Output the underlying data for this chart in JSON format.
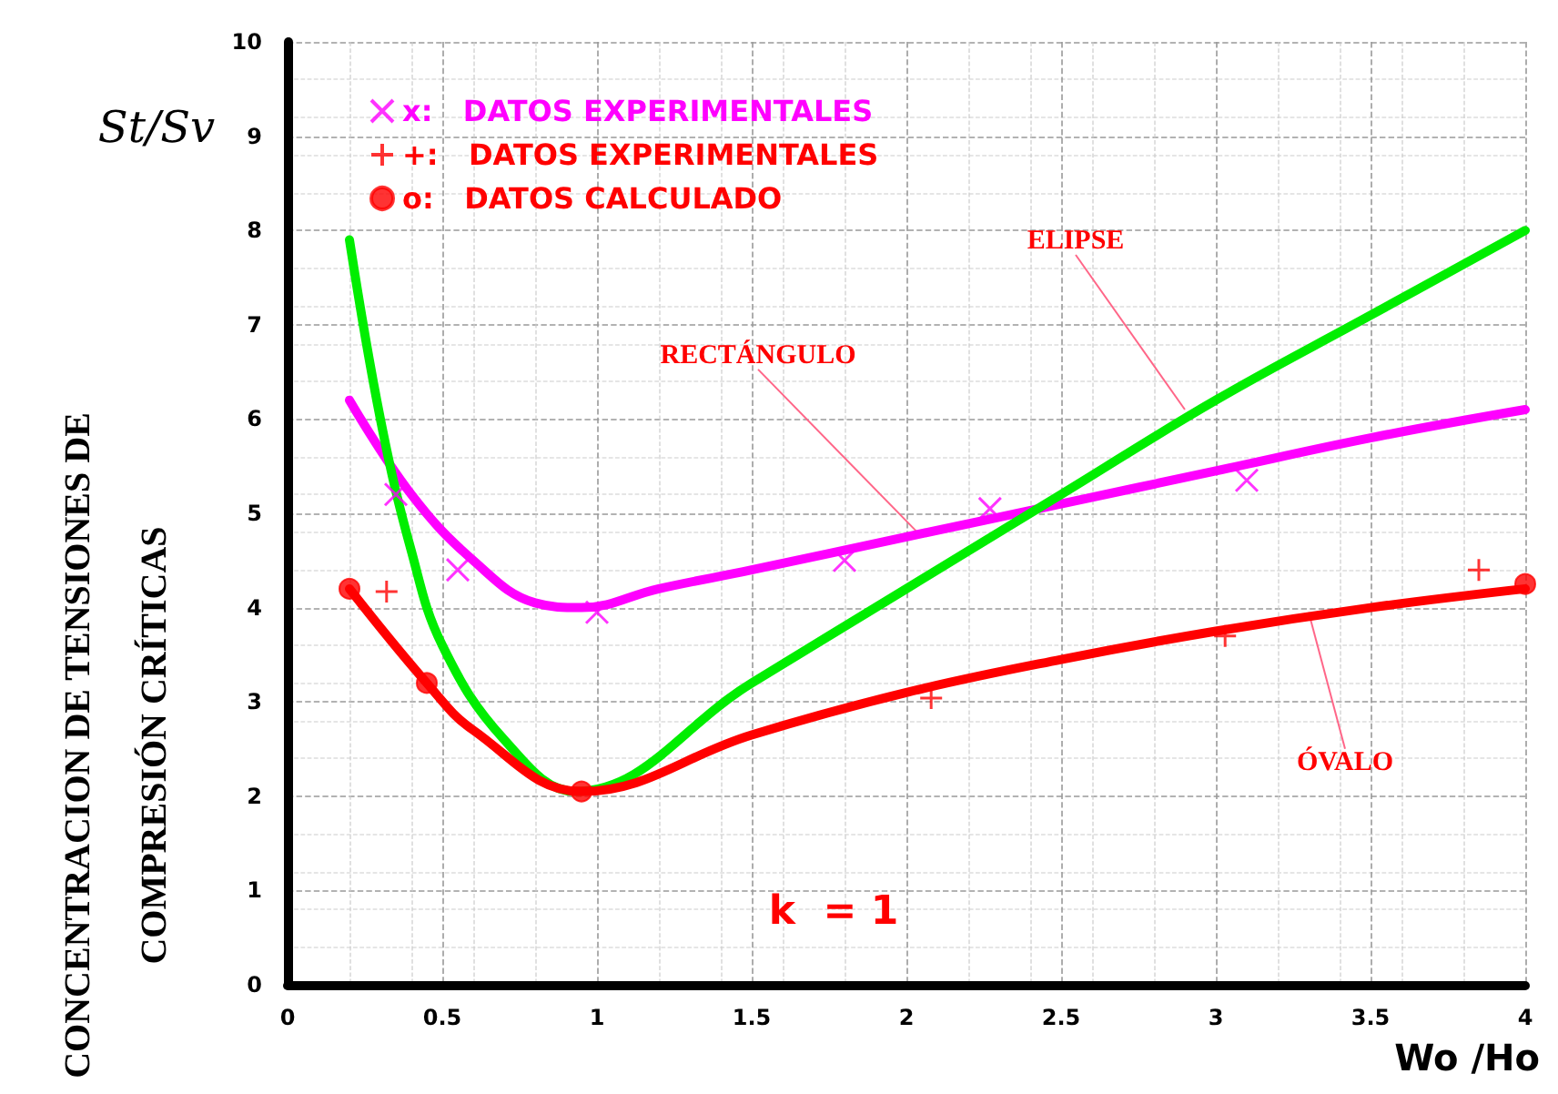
{
  "chart_data": {
    "type": "line",
    "xlabel": "Wo /Ho",
    "ylabel": "CONCENTRACION DE TENSIONES DE\nCOMPRESIÓN CRÍTICAS",
    "xlim": [
      0,
      4
    ],
    "xticks": [
      0,
      0.5,
      1,
      1.5,
      2,
      2.5,
      3,
      3.5,
      4
    ],
    "ylim": [
      0,
      10
    ],
    "yticks": [
      0,
      1,
      2,
      3,
      4,
      5,
      6,
      7,
      8,
      9,
      10
    ],
    "grid": true,
    "legend": "top left",
    "line_style": "solid",
    "series": [
      {
        "color": "#ff00ff",
        "marker": "none",
        "x": [
          0.2,
          0.4,
          0.6,
          0.8,
          0.95,
          1.2,
          1.5,
          2.0,
          2.5,
          3.0,
          3.5,
          4.0
        ],
        "values": [
          6.2,
          5.2,
          4.5,
          4.05,
          4.0,
          4.2,
          4.4,
          4.75,
          5.1,
          5.45,
          5.8,
          6.1
        ]
      },
      {
        "color": "#00ee00",
        "marker": "none",
        "x": [
          0.2,
          0.3,
          0.4,
          0.5,
          0.7,
          0.93,
          1.5,
          2.0,
          2.5,
          3.0,
          3.5,
          4.0
        ],
        "values": [
          7.9,
          6.0,
          4.6,
          3.6,
          2.6,
          2.05,
          3.2,
          4.2,
          5.2,
          6.2,
          7.1,
          8.0
        ]
      },
      {
        "color": "#ff0000",
        "marker": "none",
        "x": [
          0.2,
          0.45,
          0.6,
          0.95,
          1.5,
          2.0,
          2.5,
          3.0,
          3.5,
          4.0
        ],
        "values": [
          4.2,
          3.2,
          2.7,
          2.05,
          2.65,
          3.1,
          3.45,
          3.75,
          4.0,
          4.2
        ]
      },
      {
        "type": "scatter",
        "name": "x:   DATOS EXPERIMENTALES",
        "color": "#ff00ff",
        "marker": "cross",
        "x": [
          0.35,
          0.55,
          1.0,
          1.8,
          2.27,
          3.1
        ],
        "values": [
          5.2,
          4.4,
          3.95,
          4.5,
          5.05,
          5.35
        ]
      },
      {
        "type": "scatter",
        "name": "+:   DATOS EXPERIMENTALES",
        "color": "#ff0000",
        "marker": "plus",
        "x": [
          0.32,
          2.08,
          3.03,
          3.85
        ],
        "values": [
          4.17,
          3.04,
          3.7,
          4.4
        ]
      },
      {
        "type": "scatter",
        "name": "o:   DATOS CALCULADO",
        "color": "#ff0000",
        "marker": "circle",
        "x": [
          0.2,
          0.45,
          0.95,
          4.0
        ],
        "values": [
          4.2,
          3.2,
          2.05,
          4.25
        ]
      }
    ],
    "annotations": [
      "St/Sv",
      {
        "text": "RECTÁNGULO",
        "x": 2.05,
        "y": 4.75
      },
      {
        "text": "ELIPSE",
        "x": 2.9,
        "y": 6.1
      },
      {
        "text": "ÓVALO",
        "x": 3.3,
        "y": 3.95
      },
      "k  = 1"
    ]
  }
}
